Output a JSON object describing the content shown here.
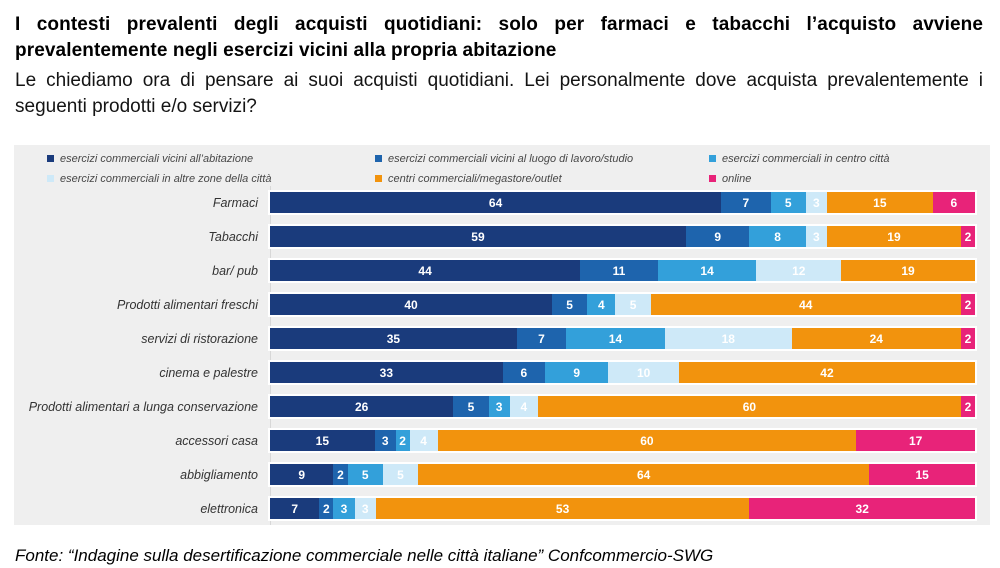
{
  "header": {
    "title": "I contesti prevalenti degli acquisti quotidiani: solo per farmaci e tabacchi l’acquisto avviene prevalentemente negli esercizi vicini alla propria abitazione",
    "subtitle": "Le chiediamo ora di pensare ai suoi acquisti quotidiani. Lei personalmente dove acquista prevalentemente i seguenti prodotti e/o servizi?"
  },
  "footer": {
    "source": "Fonte: “Indagine sulla desertificazione commerciale nelle città italiane” Confcommercio-SWG"
  },
  "chart_data": {
    "type": "bar",
    "variant": "horizontal-stacked",
    "title": "",
    "xlabel": "",
    "ylabel": "",
    "xlim": [
      0,
      100
    ],
    "unit": "percent",
    "grid": false,
    "legend_position": "top",
    "value_labels": "inside-white-bold",
    "panel_background": "#efefef",
    "categories": [
      "Farmaci",
      "Tabacchi",
      "bar/ pub",
      "Prodotti alimentari freschi",
      "servizi di ristorazione",
      "cinema e palestre",
      "Prodotti alimentari a lunga conservazione",
      "accessori casa",
      "abbigliamento",
      "elettronica"
    ],
    "series": [
      {
        "name": "esercizi commerciali vicini all’abitazione",
        "color": "#1a3b7c",
        "values": [
          64,
          59,
          44,
          40,
          35,
          33,
          26,
          15,
          9,
          7
        ]
      },
      {
        "name": "esercizi commerciali vicini al luogo di lavoro/studio",
        "color": "#1e64ad",
        "values": [
          7,
          9,
          11,
          5,
          7,
          6,
          5,
          3,
          2,
          2
        ]
      },
      {
        "name": "esercizi commerciali in centro città",
        "color": "#33a0da",
        "values": [
          5,
          8,
          14,
          4,
          14,
          9,
          3,
          2,
          5,
          3
        ]
      },
      {
        "name": "esercizi commerciali in altre zone della città",
        "color": "#cee9f8",
        "values": [
          3,
          3,
          12,
          5,
          18,
          10,
          4,
          4,
          5,
          3
        ]
      },
      {
        "name": "centri commerciali/megastore/outlet",
        "color": "#f2930d",
        "values": [
          15,
          19,
          19,
          44,
          24,
          42,
          60,
          60,
          64,
          53
        ]
      },
      {
        "name": "online",
        "color": "#e82379",
        "values": [
          6,
          2,
          0,
          2,
          2,
          0,
          2,
          17,
          15,
          32
        ]
      }
    ]
  }
}
